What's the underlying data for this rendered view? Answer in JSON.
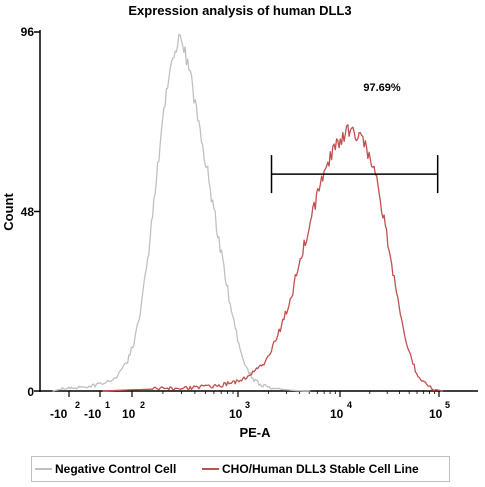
{
  "chart_data": {
    "type": "line",
    "title": "Expression analysis of human DLL3",
    "xlabel": "PE-A",
    "ylabel": "Count",
    "ylim": [
      0,
      96
    ],
    "y_ticks": [
      "0",
      "48",
      "96"
    ],
    "x_ticks": [
      {
        "base": "-10",
        "exp": "2"
      },
      {
        "base": "-10",
        "exp": "1"
      },
      {
        "base": "10",
        "exp": "2"
      },
      {
        "base": "10",
        "exp": "3"
      },
      {
        "base": "10",
        "exp": "4"
      },
      {
        "base": "10",
        "exp": "5"
      }
    ],
    "x_scale": "biexponential",
    "grid": false,
    "legend_position": "bottom",
    "series": [
      {
        "name": "Negative Control Cell",
        "color": "#c0c0c0",
        "points": [
          [
            -120,
            0
          ],
          [
            -40,
            0.3
          ],
          [
            20,
            0.5
          ],
          [
            100,
            0.6
          ],
          [
            250,
            0.8
          ],
          [
            450,
            1.2
          ],
          [
            650,
            2.2
          ],
          [
            800,
            4
          ],
          [
            950,
            7.5
          ],
          [
            1050,
            13
          ],
          [
            1150,
            22
          ],
          [
            1250,
            35
          ],
          [
            1350,
            52
          ],
          [
            1450,
            70
          ],
          [
            1550,
            84
          ],
          [
            1650,
            91
          ],
          [
            1700,
            96
          ],
          [
            1760,
            92
          ],
          [
            1850,
            86
          ],
          [
            1950,
            75
          ],
          [
            2050,
            65
          ],
          [
            2150,
            54
          ],
          [
            2250,
            43
          ],
          [
            2350,
            32
          ],
          [
            2450,
            22
          ],
          [
            2550,
            13
          ],
          [
            2650,
            7
          ],
          [
            2750,
            3.5
          ],
          [
            2850,
            2
          ],
          [
            2950,
            1.2
          ],
          [
            3050,
            0.7
          ],
          [
            3200,
            0.4
          ],
          [
            3400,
            0.1
          ],
          [
            3600,
            0
          ]
        ]
      },
      {
        "name": "CHO/Human DLL3 Stable Cell Line",
        "color": "#c0504d",
        "points": [
          [
            600,
            0
          ],
          [
            1000,
            0.3
          ],
          [
            1500,
            0.6
          ],
          [
            2000,
            1
          ],
          [
            2300,
            1.5
          ],
          [
            2500,
            2.3
          ],
          [
            2700,
            4
          ],
          [
            2900,
            7
          ],
          [
            3000,
            9.5
          ],
          [
            3100,
            14
          ],
          [
            3200,
            19
          ],
          [
            3300,
            24
          ],
          [
            3400,
            32
          ],
          [
            3500,
            39
          ],
          [
            3600,
            46
          ],
          [
            3700,
            53
          ],
          [
            3800,
            59
          ],
          [
            3900,
            64
          ],
          [
            4000,
            67
          ],
          [
            4100,
            69
          ],
          [
            4200,
            70
          ],
          [
            4300,
            68
          ],
          [
            4400,
            65
          ],
          [
            4500,
            59
          ],
          [
            4600,
            51
          ],
          [
            4700,
            40
          ],
          [
            4800,
            29
          ],
          [
            4900,
            19
          ],
          [
            5000,
            11
          ],
          [
            5100,
            5.5
          ],
          [
            5200,
            2.5
          ],
          [
            5300,
            1
          ],
          [
            5400,
            0.3
          ],
          [
            5500,
            0
          ]
        ]
      }
    ],
    "gate": {
      "label": "97.69%",
      "x_range": [
        3030,
        5420
      ],
      "y": 58
    }
  }
}
